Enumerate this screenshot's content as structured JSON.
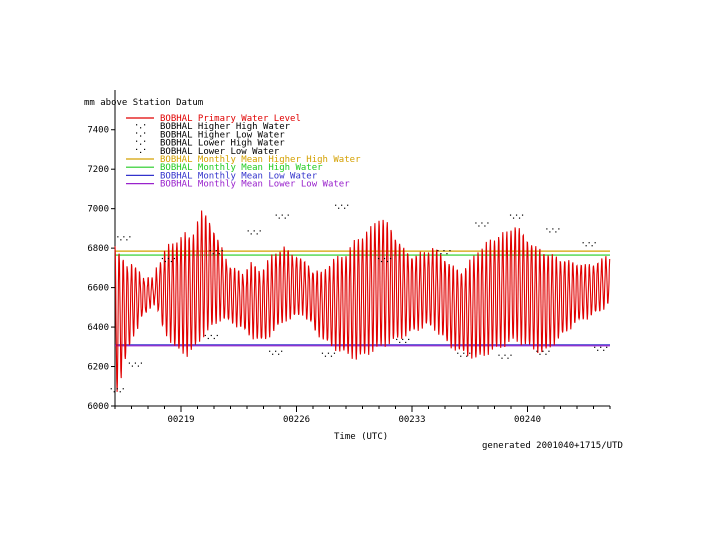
{
  "chart_data": {
    "type": "line",
    "ylabel": "mm above Station Datum",
    "xlabel": "Time (UTC)",
    "footer": "generated 2001040+1715/UTD",
    "ylim": [
      6000,
      7500
    ],
    "yticks": [
      6000,
      6200,
      6400,
      6600,
      6800,
      7000,
      7200,
      7400
    ],
    "xlim": [
      0,
      30
    ],
    "xticks": [
      {
        "x": 4,
        "label": "00219"
      },
      {
        "x": 11,
        "label": "00226"
      },
      {
        "x": 18,
        "label": "00233"
      },
      {
        "x": 25,
        "label": "00240"
      }
    ],
    "grid": false,
    "legend_position": "top-left",
    "legend": [
      {
        "label": "BOBHAL Primary Water Level",
        "color": "#e00000",
        "marker": "line"
      },
      {
        "label": "BOBHAL Higher High Water",
        "color": "#000000",
        "marker": "dots"
      },
      {
        "label": "BOBHAL Higher Low Water",
        "color": "#000000",
        "marker": "dots"
      },
      {
        "label": "BOBHAL Lower High Water",
        "color": "#000000",
        "marker": "dots"
      },
      {
        "label": "BOBHAL Lower Low Water",
        "color": "#000000",
        "marker": "dots"
      },
      {
        "label": "BOBHAL Monthly Mean Higher High Water",
        "color": "#d4a000",
        "marker": "line"
      },
      {
        "label": "BOBHAL Monthly Mean High Water",
        "color": "#22cc22",
        "marker": "line"
      },
      {
        "label": "BOBHAL Monthly Mean Low Water",
        "color": "#3333cc",
        "marker": "line"
      },
      {
        "label": "BOBHAL Monthly Mean Lower Low Water",
        "color": "#9922cc",
        "marker": "line"
      }
    ],
    "reference_lines": [
      {
        "name": "BOBHAL Monthly Mean Higher High Water",
        "y": 6785,
        "color": "#d4a000"
      },
      {
        "name": "BOBHAL Monthly Mean High Water",
        "y": 6765,
        "color": "#22cc22"
      },
      {
        "name": "BOBHAL Monthly Mean Low Water",
        "y": 6310,
        "color": "#3333cc"
      },
      {
        "name": "BOBHAL Monthly Mean Lower Low Water",
        "y": 6305,
        "color": "#9922cc"
      }
    ],
    "series": [
      {
        "name": "BOBHAL Primary Water Level",
        "color": "#e00000",
        "cycle_days": 0.5,
        "high_water": [
          6810,
          6760,
          6740,
          6700,
          6720,
          6690,
          6660,
          6640,
          6650,
          6640,
          6700,
          6740,
          6790,
          6810,
          6820,
          6840,
          6860,
          6870,
          6850,
          6880,
          6940,
          6980,
          6960,
          6920,
          6880,
          6820,
          6760,
          6730,
          6700,
          6690,
          6680,
          6660,
          6700,
          6720,
          6700,
          6680,
          6700,
          6730,
          6760,
          6780,
          6790,
          6800,
          6780,
          6760,
          6760,
          6740,
          6720,
          6700,
          6680,
          6680,
          6670,
          6700,
          6720,
          6740,
          6750,
          6760,
          6770,
          6800,
          6830,
          6850,
          6860,
          6880,
          6900,
          6930,
          6950,
          6940,
          6920,
          6880,
          6850,
          6820,
          6790,
          6770,
          6760,
          6760,
          6770,
          6780,
          6790,
          6800,
          6780,
          6760,
          6740,
          6720,
          6700,
          6690,
          6680,
          6700,
          6730,
          6760,
          6790,
          6800,
          6820,
          6840,
          6850,
          6860,
          6870,
          6880,
          6900,
          6910,
          6890,
          6860,
          6840,
          6820,
          6800,
          6790,
          6780,
          6770,
          6760,
          6750,
          6740,
          6740,
          6730,
          6720,
          6720,
          6720,
          6710,
          6710,
          6720,
          6730,
          6740,
          6750
        ],
        "low_water": [
          6080,
          6150,
          6230,
          6300,
          6360,
          6400,
          6450,
          6470,
          6500,
          6520,
          6480,
          6400,
          6360,
          6330,
          6300,
          6280,
          6270,
          6260,
          6280,
          6300,
          6330,
          6360,
          6380,
          6400,
          6420,
          6440,
          6440,
          6430,
          6420,
          6410,
          6400,
          6380,
          6360,
          6350,
          6340,
          6330,
          6340,
          6360,
          6380,
          6400,
          6420,
          6440,
          6440,
          6450,
          6460,
          6470,
          6440,
          6420,
          6380,
          6360,
          6340,
          6320,
          6300,
          6290,
          6280,
          6270,
          6260,
          6250,
          6240,
          6250,
          6260,
          6270,
          6280,
          6290,
          6300,
          6310,
          6320,
          6330,
          6340,
          6350,
          6360,
          6370,
          6380,
          6390,
          6400,
          6410,
          6400,
          6390,
          6370,
          6350,
          6320,
          6300,
          6290,
          6280,
          6270,
          6260,
          6250,
          6240,
          6250,
          6260,
          6270,
          6280,
          6290,
          6300,
          6310,
          6320,
          6330,
          6330,
          6320,
          6310,
          6300,
          6290,
          6280,
          6270,
          6280,
          6300,
          6320,
          6340,
          6360,
          6380,
          6400,
          6420,
          6430,
          6440,
          6450,
          6460,
          6470,
          6480,
          6500,
          6520
        ]
      }
    ],
    "markers": {
      "hhw": [
        [
          0.5,
          6830
        ],
        [
          3.2,
          6720
        ],
        [
          6.1,
          6760
        ],
        [
          8.4,
          6860
        ],
        [
          10.1,
          6940
        ],
        [
          13.7,
          6990
        ],
        [
          16.3,
          6720
        ],
        [
          19.9,
          6760
        ],
        [
          22.2,
          6900
        ],
        [
          24.3,
          6940
        ],
        [
          26.5,
          6870
        ],
        [
          28.7,
          6800
        ]
      ],
      "llw": [
        [
          0.1,
          6060
        ],
        [
          1.2,
          6190
        ],
        [
          5.8,
          6330
        ],
        [
          9.7,
          6250
        ],
        [
          12.9,
          6240
        ],
        [
          17.4,
          6310
        ],
        [
          21.1,
          6240
        ],
        [
          23.6,
          6230
        ],
        [
          25.9,
          6250
        ],
        [
          29.4,
          6270
        ]
      ]
    }
  }
}
